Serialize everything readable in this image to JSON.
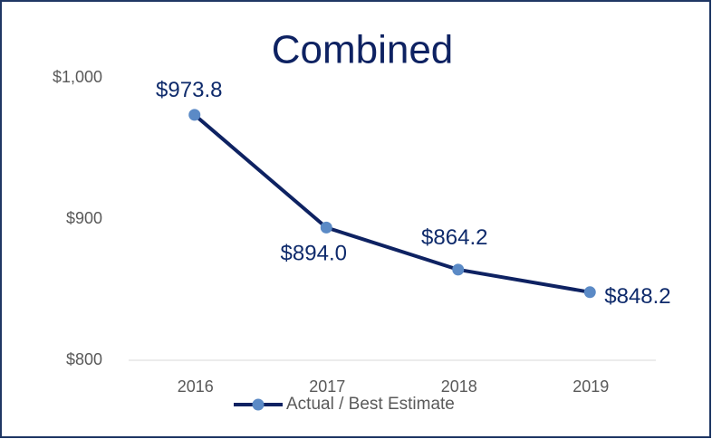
{
  "chart_data": {
    "type": "line",
    "title": "Combined",
    "categories": [
      "2016",
      "2017",
      "2018",
      "2019"
    ],
    "series": [
      {
        "name": "Actual / Best Estimate",
        "color": "#0e2262",
        "marker_color": "#5b8ac6",
        "values": [
          973.8,
          894.0,
          864.2,
          848.2
        ],
        "value_labels": [
          "$973.8",
          "$894.0",
          "$864.2",
          "$848.2"
        ]
      }
    ],
    "ylim": [
      800,
      1000
    ],
    "yticks": [
      {
        "value": 800,
        "label": "$800"
      },
      {
        "value": 900,
        "label": "$900"
      },
      {
        "value": 1000,
        "label": "$1,000"
      }
    ],
    "grid": false,
    "legend": "bottom"
  }
}
